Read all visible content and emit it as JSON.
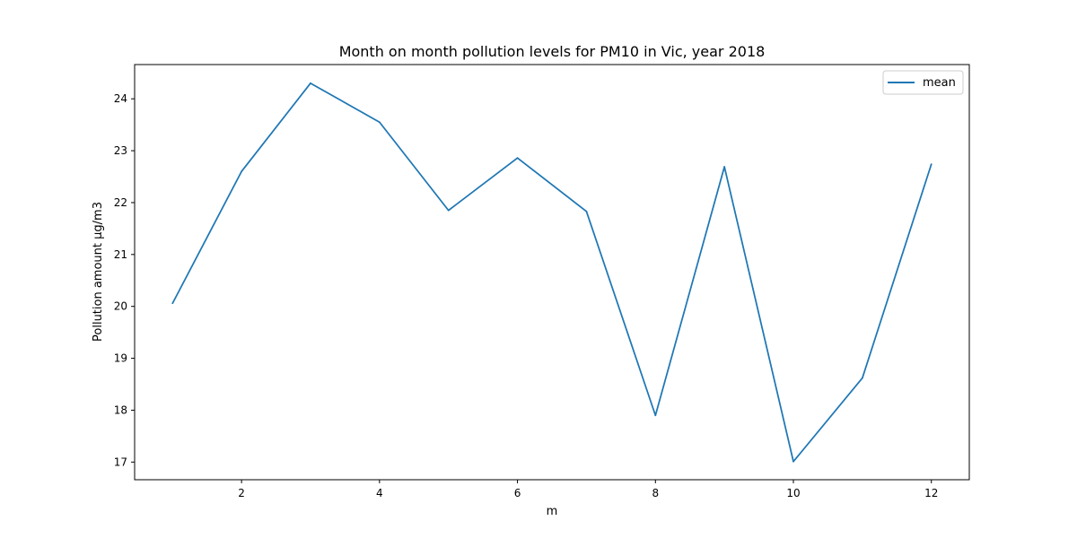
{
  "chart_data": {
    "type": "line",
    "title": "Month on month pollution levels for PM10 in Vic, year 2018",
    "xlabel": "m",
    "ylabel": "Pollution amount μg/m3",
    "x": [
      1,
      2,
      3,
      4,
      5,
      6,
      7,
      8,
      9,
      10,
      11,
      12
    ],
    "xlim": [
      0.45,
      12.55
    ],
    "ylim": [
      16.66,
      24.66
    ],
    "xticks": [
      2,
      4,
      6,
      8,
      10,
      12
    ],
    "yticks": [
      17,
      18,
      19,
      20,
      21,
      22,
      23,
      24
    ],
    "grid": false,
    "legend_position": "top-right",
    "series": [
      {
        "name": "mean",
        "color": "#1f77b4",
        "values": [
          20.06,
          22.6,
          24.3,
          23.55,
          21.85,
          22.86,
          21.83,
          17.9,
          22.69,
          17.01,
          18.62,
          22.74
        ]
      }
    ]
  }
}
